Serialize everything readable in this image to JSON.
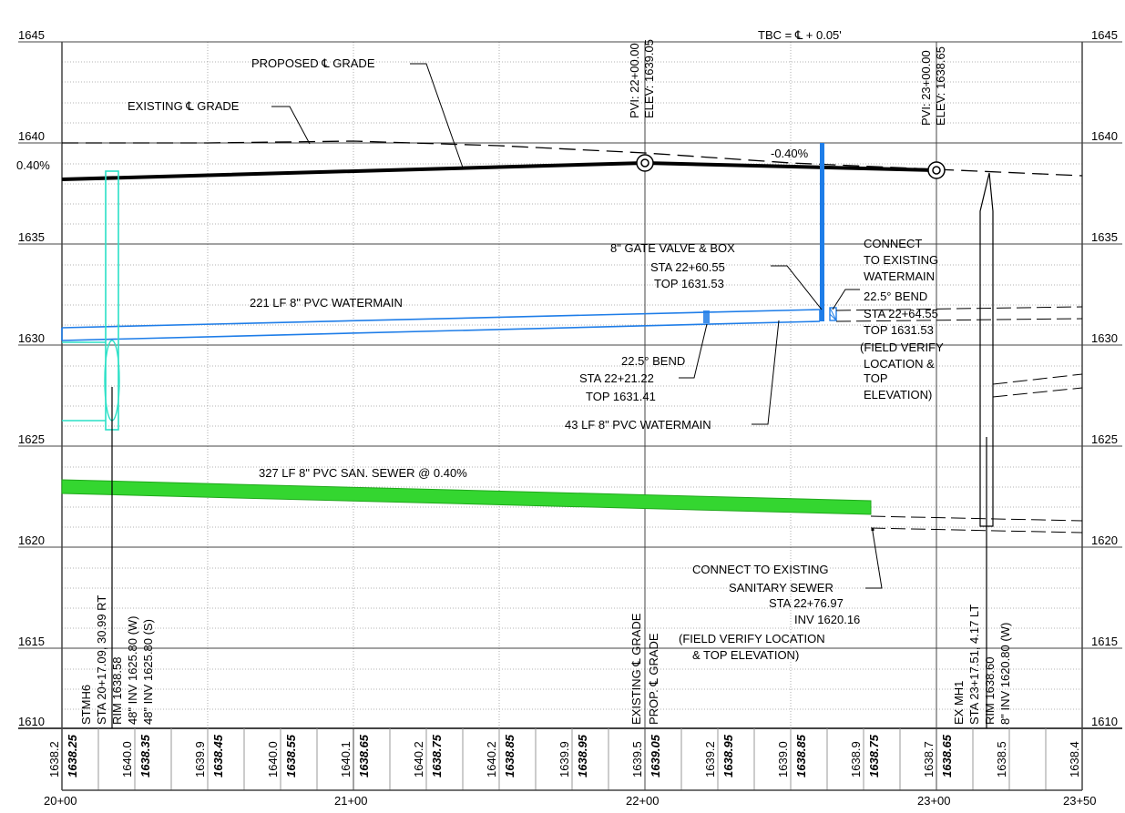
{
  "profile": {
    "elevation_labels": [
      "1645",
      "1640",
      "1635",
      "1630",
      "1625",
      "1620",
      "1615",
      "1610"
    ],
    "station_labels": [
      "20+00",
      "21+00",
      "22+00",
      "23+00",
      "23+50"
    ],
    "tbc_note": "TBC = ℄ + 0.05'",
    "proposed_grade_label": "PROPOSED ℄ GRADE",
    "existing_grade_label": "EXISTING ℄ GRADE",
    "grade_left": "0.40%",
    "grade_right": "-0.40%",
    "pvi_1": {
      "sta": "PVI: 22+00.00",
      "elev": "ELEV: 1639.05"
    },
    "pvi_2": {
      "sta": "PVI: 23+00.00",
      "elev": "ELEV: 1638.65"
    },
    "watermain_221": "221 LF 8\" PVC WATERMAIN",
    "watermain_43": "43 LF 8\" PVC WATERMAIN",
    "gate_valve": [
      "8\" GATE VALVE & BOX",
      "STA 22+60.55",
      "TOP 1631.53"
    ],
    "bend_1": [
      "22.5° BEND",
      "STA 22+21.22",
      "TOP 1631.41"
    ],
    "connect_watermain": [
      "CONNECT",
      "TO EXISTING",
      "WATERMAIN",
      "22.5° BEND",
      "STA 22+64.55",
      "TOP 1631.53",
      "(FIELD VERIFY",
      "LOCATION &",
      "TOP",
      "ELEVATION)"
    ],
    "sewer_label": "327 LF 8\" PVC SAN. SEWER @ 0.40%",
    "connect_sewer": [
      "CONNECT TO EXISTING",
      "SANITARY SEWER",
      "STA 22+76.97",
      "INV 1620.16",
      "(FIELD VERIFY LOCATION",
      "& TOP ELEVATION)"
    ],
    "stmh6": [
      "STMH6",
      "STA 20+17.09, 30.99 RT",
      "RIM 1638.58",
      "48\" INV 1625.80 (W)",
      "48\" INV 1625.80 (S)"
    ],
    "exmh1": [
      "EX MH1",
      "STA 23+17.51, 4.17 LT",
      "RIM 1638.60",
      "8\" INV 1620.80 (W)"
    ],
    "legend_existing": "EXISTING ℄ GRADE",
    "legend_proposed": "PROP. ℄ GRADE",
    "existing_elevs": [
      "1638.2",
      "1640.0",
      "1639.9",
      "1640.0",
      "1640.1",
      "1640.2",
      "1640.2",
      "1639.9",
      "1639.5",
      "1639.2",
      "1639.0",
      "1638.9",
      "1638.7",
      "1638.5",
      "1638.4"
    ],
    "proposed_elevs": [
      "1638.25",
      "1638.35",
      "1638.45",
      "1638.55",
      "1638.65",
      "1638.75",
      "1638.85",
      "1638.95",
      "1639.05",
      "1638.95",
      "1638.85",
      "1638.75",
      "1638.65"
    ]
  }
}
